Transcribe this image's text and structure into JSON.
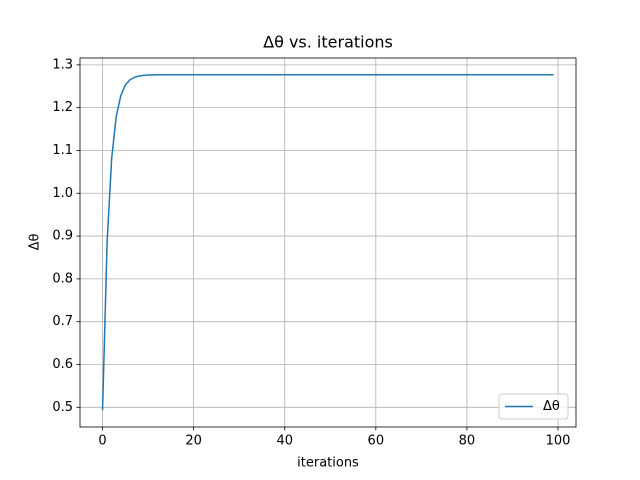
{
  "chart_data": {
    "type": "line",
    "title": "Δθ vs. iterations",
    "xlabel": "iterations",
    "ylabel": "Δθ",
    "x": [
      0,
      1,
      2,
      3,
      4,
      5,
      6,
      7,
      8,
      9,
      10,
      11,
      12,
      13,
      14,
      15,
      16,
      17,
      18,
      19,
      20,
      21,
      22,
      23,
      24,
      25,
      26,
      27,
      28,
      29,
      30,
      31,
      32,
      33,
      34,
      35,
      36,
      37,
      38,
      39,
      40,
      41,
      42,
      43,
      44,
      45,
      46,
      47,
      48,
      49,
      50,
      51,
      52,
      53,
      54,
      55,
      56,
      57,
      58,
      59,
      60,
      61,
      62,
      63,
      64,
      65,
      66,
      67,
      68,
      69,
      70,
      71,
      72,
      73,
      74,
      75,
      76,
      77,
      78,
      79,
      80,
      81,
      82,
      83,
      84,
      85,
      86,
      87,
      88,
      89,
      90,
      91,
      92,
      93,
      94,
      95,
      96,
      97,
      98,
      99
    ],
    "series": [
      {
        "name": "Δθ",
        "color": "#1f77b4",
        "values": [
          0.493,
          0.885,
          1.081,
          1.179,
          1.228,
          1.253,
          1.265,
          1.271,
          1.274,
          1.2755,
          1.2763,
          1.2767,
          1.2769,
          1.277,
          1.277,
          1.277,
          1.277,
          1.277,
          1.277,
          1.277,
          1.277,
          1.277,
          1.277,
          1.277,
          1.277,
          1.277,
          1.277,
          1.277,
          1.277,
          1.277,
          1.277,
          1.277,
          1.277,
          1.277,
          1.277,
          1.277,
          1.277,
          1.277,
          1.277,
          1.277,
          1.277,
          1.277,
          1.277,
          1.277,
          1.277,
          1.277,
          1.277,
          1.277,
          1.277,
          1.277,
          1.277,
          1.277,
          1.277,
          1.277,
          1.277,
          1.277,
          1.277,
          1.277,
          1.277,
          1.277,
          1.277,
          1.277,
          1.277,
          1.277,
          1.277,
          1.277,
          1.277,
          1.277,
          1.277,
          1.277,
          1.277,
          1.277,
          1.277,
          1.277,
          1.277,
          1.277,
          1.277,
          1.277,
          1.277,
          1.277,
          1.277,
          1.277,
          1.277,
          1.277,
          1.277,
          1.277,
          1.277,
          1.277,
          1.277,
          1.277,
          1.277,
          1.277,
          1.277,
          1.277,
          1.277,
          1.277,
          1.277,
          1.277,
          1.277,
          1.277
        ]
      }
    ],
    "xlim": [
      -4.95,
      103.95
    ],
    "xticks": [
      0,
      20,
      40,
      60,
      80,
      100
    ],
    "ylim": [
      0.454,
      1.316
    ],
    "yticks": [
      0.5,
      0.6,
      0.7,
      0.8,
      0.9,
      {
        "value": 1,
        "label": "1.0"
      },
      1.1,
      1.2,
      1.3
    ],
    "grid": true,
    "legend": "lower right"
  }
}
